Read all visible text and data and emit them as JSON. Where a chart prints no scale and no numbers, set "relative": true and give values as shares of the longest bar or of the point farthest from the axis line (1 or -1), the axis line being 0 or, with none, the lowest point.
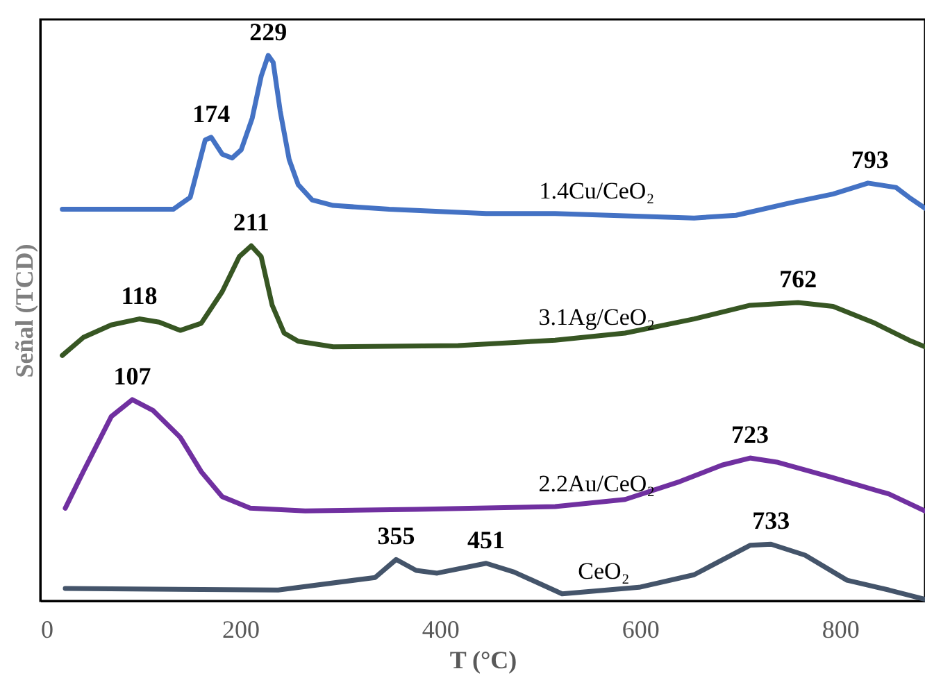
{
  "chart_data": {
    "type": "line",
    "relative": true,
    "xlabel": "T (°C)",
    "ylabel": "Señal (TCD)",
    "xlim": [
      0,
      885
    ],
    "xticks": [
      0,
      200,
      400,
      600,
      800
    ],
    "grid": false,
    "marker": "none",
    "line_style": "solid",
    "series": [
      {
        "name": "1.4Cu/CeO₂",
        "color": "#4472c4",
        "x": [
          22,
          133,
          150,
          165,
          171,
          182,
          192,
          201,
          212,
          221,
          228,
          233,
          240,
          249,
          258,
          272,
          293,
          349,
          446,
          515,
          654,
          696,
          751,
          793,
          828,
          856,
          869,
          885
        ],
        "values": [
          0.718,
          0.718,
          0.74,
          0.845,
          0.85,
          0.819,
          0.812,
          0.827,
          0.885,
          0.962,
          1.0,
          0.987,
          0.898,
          0.809,
          0.763,
          0.735,
          0.725,
          0.718,
          0.71,
          0.71,
          0.702,
          0.707,
          0.73,
          0.746,
          0.766,
          0.758,
          0.74,
          0.72
        ]
      },
      {
        "name": "3.1Ag/CeO₂",
        "color": "#375623",
        "x": [
          22,
          43,
          71,
          99,
          119,
          140,
          161,
          182,
          199,
          211,
          221,
          232,
          244,
          258,
          293,
          418,
          515,
          585,
          654,
          710,
          758,
          793,
          835,
          869,
          885
        ],
        "values": [
          0.45,
          0.483,
          0.506,
          0.517,
          0.511,
          0.496,
          0.509,
          0.567,
          0.631,
          0.651,
          0.631,
          0.542,
          0.491,
          0.476,
          0.466,
          0.468,
          0.478,
          0.491,
          0.517,
          0.542,
          0.547,
          0.54,
          0.509,
          0.478,
          0.466
        ]
      },
      {
        "name": "2.2Au/CeO₂",
        "color": "#7030a0",
        "x": [
          25,
          43,
          71,
          92,
          113,
          140,
          161,
          182,
          210,
          265,
          376,
          515,
          585,
          640,
          682,
          710,
          738,
          793,
          849,
          885
        ],
        "values": [
          0.17,
          0.237,
          0.338,
          0.369,
          0.349,
          0.3,
          0.237,
          0.191,
          0.17,
          0.165,
          0.168,
          0.173,
          0.186,
          0.219,
          0.249,
          0.262,
          0.254,
          0.226,
          0.196,
          0.165
        ]
      },
      {
        "name": "CeO₂",
        "color": "#44546a",
        "x": [
          25,
          238,
          335,
          356,
          376,
          397,
          446,
          474,
          522,
          599,
          654,
          710,
          731,
          765,
          807,
          849,
          885
        ],
        "values": [
          0.023,
          0.02,
          0.043,
          0.076,
          0.056,
          0.051,
          0.069,
          0.053,
          0.013,
          0.025,
          0.048,
          0.102,
          0.104,
          0.084,
          0.038,
          0.02,
          0.003
        ]
      }
    ],
    "annotations": [
      {
        "text": "229",
        "x": 228,
        "y": 1.0
      },
      {
        "text": "174",
        "x": 171,
        "y": 0.85
      },
      {
        "text": "793",
        "x": 830,
        "y": 0.766
      },
      {
        "text": "118",
        "x": 99,
        "y": 0.517
      },
      {
        "text": "211",
        "x": 211,
        "y": 0.651
      },
      {
        "text": "762",
        "x": 758,
        "y": 0.547
      },
      {
        "text": "107",
        "x": 92,
        "y": 0.369
      },
      {
        "text": "723",
        "x": 710,
        "y": 0.262
      },
      {
        "text": "355",
        "x": 356,
        "y": 0.076
      },
      {
        "text": "451",
        "x": 446,
        "y": 0.069
      },
      {
        "text": "733",
        "x": 731,
        "y": 0.104
      }
    ]
  }
}
